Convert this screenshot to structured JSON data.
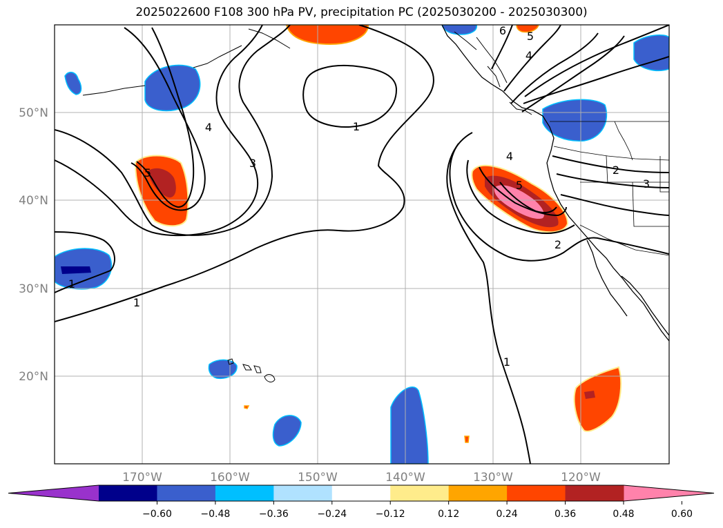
{
  "title": "2025022600 F108 300 hPa PV, precipitation PC (2025030200 - 2025030300)",
  "longitude_ticks": [
    "170°W",
    "160°W",
    "150°W",
    "140°W",
    "130°W",
    "120°W"
  ],
  "latitude_ticks": [
    "50°N",
    "40°N",
    "30°N",
    "20°N"
  ],
  "colorbar": {
    "tick_labels": [
      "−0.60",
      "−0.48",
      "−0.36",
      "−0.24",
      "−0.12",
      "0.12",
      "0.24",
      "0.36",
      "0.48",
      "0.60"
    ],
    "colors": [
      "#9932CC",
      "#00008B",
      "#3A5FCD",
      "#00BFFF",
      "#B0E2FF",
      "#FFFFFF",
      "#FFEC8B",
      "#FFA500",
      "#FF4500",
      "#B22222",
      "#FF82AB"
    ],
    "extend": "both"
  },
  "contour_labels": [
    "1",
    "1",
    "1",
    "1",
    "2",
    "2",
    "3",
    "3",
    "4",
    "4",
    "4",
    "5",
    "5",
    "5",
    "6"
  ],
  "colors": {
    "contour": "#000000",
    "gridline": "#b0b0b0",
    "coastline": "#000000"
  }
}
